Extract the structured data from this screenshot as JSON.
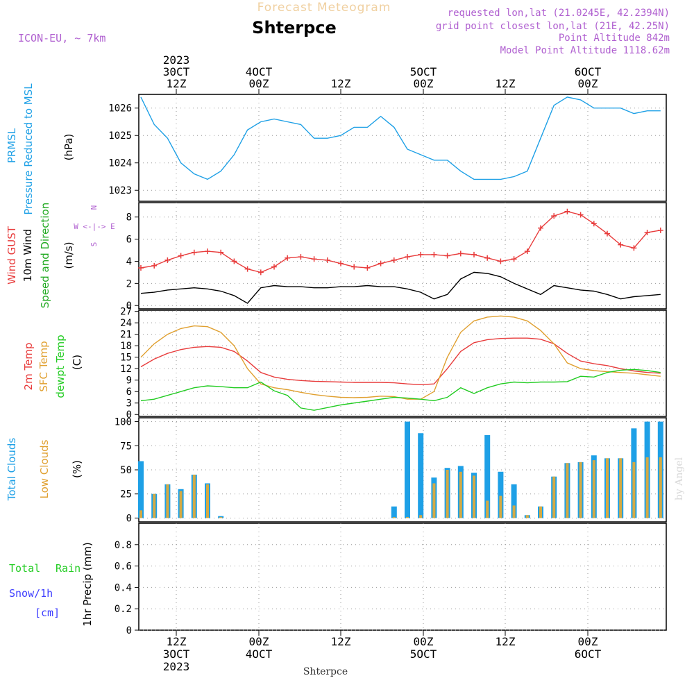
{
  "header": {
    "top_title": "Forecast Meteogram",
    "station": "Shterpce",
    "model": "ICON-EU, ~ 7km",
    "requested": "requested lon,lat (21.0245E, 42.2394N)",
    "grid": "grid point closest lon,lat (21E, 42.25N)",
    "point_alt": "Point Altitude 842m",
    "model_alt": "Model Point Altitude 1118.62m",
    "footer_station": "Shterpce",
    "watermark": "by Angel"
  },
  "time_axis": {
    "top": [
      {
        "l1": "2023",
        "l2": "30CT",
        "l3": "12Z"
      },
      {
        "l1": "",
        "l2": "4OCT",
        "l3": "00Z"
      },
      {
        "l1": "",
        "l2": "",
        "l3": "12Z"
      },
      {
        "l1": "",
        "l2": "5OCT",
        "l3": "00Z"
      },
      {
        "l1": "",
        "l2": "",
        "l3": "12Z"
      },
      {
        "l1": "",
        "l2": "6OCT",
        "l3": "00Z"
      }
    ],
    "bottom": [
      {
        "l1": "12Z",
        "l2": "3OCT",
        "l3": "2023"
      },
      {
        "l1": "00Z",
        "l2": "4OCT",
        "l3": ""
      },
      {
        "l1": "12Z",
        "l2": "",
        "l3": ""
      },
      {
        "l1": "00Z",
        "l2": "5OCT",
        "l3": ""
      },
      {
        "l1": "12Z",
        "l2": "",
        "l3": ""
      },
      {
        "l1": "00Z",
        "l2": "6OCT",
        "l3": ""
      }
    ]
  },
  "colors": {
    "pressure": "#1ea0e6",
    "gust": "#e83c3c",
    "wind": "#000000",
    "temp2m": "#e83c3c",
    "sfc": "#e0a030",
    "dewpt": "#22cc22",
    "total_clouds": "#1ea0e6",
    "low_clouds": "#d4aa44",
    "rain": "#22cc22",
    "snow": "#3c3cff",
    "violet": "#b060d0"
  },
  "panel_labels": {
    "pressure": [
      "PRMSL",
      "Pressure Reduced to MSL",
      "(hPa)"
    ],
    "wind": [
      "Wind GUST",
      "10m Wind",
      "Speed and Direction",
      "(m/s)"
    ],
    "compass": [
      "N",
      "W <-|-> E",
      "S"
    ],
    "temp": [
      "2m Temp",
      "SFC Temp",
      "dewpt Temp",
      "(C)"
    ],
    "clouds": [
      "Total Clouds",
      "Low Clouds",
      "(%)"
    ],
    "precip": [
      "Total",
      "Rain",
      "Snow/1h",
      "[cm]",
      "1hr Precip (mm)"
    ]
  },
  "chart_data": [
    {
      "type": "line",
      "title": "PRMSL",
      "ylabel": "(hPa)",
      "ylim": [
        1022.6,
        1026.5
      ],
      "yticks": [
        1023,
        1024,
        1025,
        1026
      ],
      "x_hours": [
        0,
        2,
        4,
        6,
        8,
        10,
        12,
        14,
        16,
        18,
        20,
        22,
        24,
        26,
        28,
        30,
        32,
        34,
        36,
        38,
        40,
        42,
        44,
        46,
        48,
        50,
        52,
        54,
        56,
        58,
        60,
        62,
        64,
        66,
        68,
        70,
        72,
        74,
        76,
        78
      ],
      "series": [
        {
          "name": "PRMSL",
          "values": [
            1026.4,
            1025.4,
            1024.9,
            1024.0,
            1023.6,
            1023.4,
            1023.7,
            1024.3,
            1025.2,
            1025.5,
            1025.6,
            1025.5,
            1025.4,
            1024.9,
            1024.9,
            1025.0,
            1025.3,
            1025.3,
            1025.7,
            1025.3,
            1024.5,
            1024.3,
            1024.1,
            1024.1,
            1023.7,
            1023.4,
            1023.4,
            1023.4,
            1023.5,
            1023.7,
            1024.9,
            1026.1,
            1026.4,
            1026.3,
            1026.0,
            1026.0,
            1026.0,
            1025.8,
            1025.9,
            1025.9
          ]
        }
      ]
    },
    {
      "type": "line",
      "title": "Wind",
      "ylabel": "(m/s)",
      "ylim": [
        -0.3,
        9.3
      ],
      "yticks": [
        0,
        2,
        4,
        6,
        8
      ],
      "x_hours": [
        0,
        2,
        4,
        6,
        8,
        10,
        12,
        14,
        16,
        18,
        20,
        22,
        24,
        26,
        28,
        30,
        32,
        34,
        36,
        38,
        40,
        42,
        44,
        46,
        48,
        50,
        52,
        54,
        56,
        58,
        60,
        62,
        64,
        66,
        68,
        70,
        72,
        74,
        76,
        78
      ],
      "series": [
        {
          "name": "Wind GUST",
          "values": [
            3.4,
            3.6,
            4.1,
            4.5,
            4.8,
            4.9,
            4.8,
            4.0,
            3.3,
            3.0,
            3.5,
            4.3,
            4.4,
            4.2,
            4.1,
            3.8,
            3.5,
            3.4,
            3.8,
            4.1,
            4.4,
            4.6,
            4.6,
            4.5,
            4.7,
            4.6,
            4.3,
            4.0,
            4.2,
            4.9,
            7.0,
            8.1,
            8.5,
            8.2,
            7.4,
            6.5,
            5.5,
            5.2,
            6.6,
            6.8
          ]
        },
        {
          "name": "10m Wind",
          "values": [
            1.1,
            1.2,
            1.4,
            1.5,
            1.6,
            1.5,
            1.3,
            0.9,
            0.2,
            1.6,
            1.8,
            1.7,
            1.7,
            1.6,
            1.6,
            1.7,
            1.7,
            1.8,
            1.7,
            1.7,
            1.5,
            1.2,
            0.6,
            1.0,
            2.4,
            3.0,
            2.9,
            2.6,
            2.0,
            1.5,
            1.0,
            1.8,
            1.6,
            1.4,
            1.3,
            1.0,
            0.6,
            0.8,
            0.9,
            1.0
          ]
        }
      ]
    },
    {
      "type": "line",
      "title": "Temperature",
      "ylabel": "(C)",
      "ylim": [
        -0.5,
        27.3
      ],
      "yticks": [
        0,
        3,
        6,
        9,
        12,
        15,
        18,
        21,
        24,
        27
      ],
      "x_hours": [
        0,
        2,
        4,
        6,
        8,
        10,
        12,
        14,
        16,
        18,
        20,
        22,
        24,
        26,
        28,
        30,
        32,
        34,
        36,
        38,
        40,
        42,
        44,
        46,
        48,
        50,
        52,
        54,
        56,
        58,
        60,
        62,
        64,
        66,
        68,
        70,
        72,
        74,
        76,
        78
      ],
      "series": [
        {
          "name": "2m Temp",
          "values": [
            12.5,
            14.5,
            16.0,
            17.0,
            17.6,
            17.8,
            17.6,
            16.5,
            14.0,
            11.0,
            9.8,
            9.2,
            8.9,
            8.7,
            8.6,
            8.5,
            8.4,
            8.4,
            8.4,
            8.3,
            8.0,
            7.8,
            8.0,
            12.0,
            16.5,
            18.8,
            19.6,
            19.9,
            20.0,
            20.0,
            19.7,
            18.5,
            16.0,
            14.0,
            13.3,
            12.8,
            12.0,
            11.4,
            11.0,
            10.8
          ]
        },
        {
          "name": "SFC Temp",
          "values": [
            15.0,
            18.5,
            21.0,
            22.5,
            23.2,
            23.0,
            21.5,
            18.0,
            12.0,
            8.0,
            7.0,
            6.5,
            5.8,
            5.2,
            4.8,
            4.5,
            4.4,
            4.5,
            4.8,
            4.7,
            4.0,
            4.0,
            6.0,
            15.0,
            21.5,
            24.5,
            25.5,
            25.8,
            25.5,
            24.5,
            22.0,
            18.5,
            13.5,
            12.0,
            11.5,
            11.2,
            11.0,
            10.8,
            10.4,
            10.0
          ]
        },
        {
          "name": "dewpt Temp",
          "values": [
            3.6,
            4.0,
            5.0,
            6.0,
            7.0,
            7.5,
            7.3,
            7.0,
            7.0,
            8.5,
            6.2,
            5.0,
            1.7,
            1.1,
            1.8,
            2.5,
            3.0,
            3.5,
            4.0,
            4.5,
            4.3,
            4.0,
            3.6,
            4.5,
            7.0,
            5.5,
            7.0,
            8.0,
            8.5,
            8.3,
            8.5,
            8.5,
            8.6,
            10.0,
            9.8,
            11.0,
            11.6,
            11.8,
            11.5,
            11.0
          ]
        }
      ]
    },
    {
      "type": "bar",
      "title": "Clouds",
      "ylabel": "(%)",
      "ylim": [
        -4,
        104
      ],
      "yticks": [
        0,
        25,
        50,
        75,
        100
      ],
      "x_hours": [
        0,
        2,
        4,
        6,
        8,
        10,
        12,
        14,
        16,
        18,
        20,
        22,
        24,
        26,
        28,
        30,
        32,
        34,
        36,
        38,
        40,
        42,
        44,
        46,
        48,
        50,
        52,
        54,
        56,
        58,
        60,
        62,
        64,
        66,
        68,
        70,
        72,
        74,
        76,
        78
      ],
      "series": [
        {
          "name": "Total Clouds",
          "values": [
            59,
            25,
            35,
            30,
            45,
            36,
            2,
            0,
            0,
            0,
            0,
            0,
            0,
            0,
            0,
            0,
            0,
            0,
            0,
            12,
            100,
            88,
            42,
            52,
            54,
            47,
            86,
            48,
            35,
            3,
            12,
            43,
            57,
            58,
            65,
            62,
            62,
            93,
            100,
            100
          ]
        },
        {
          "name": "Low Clouds",
          "values": [
            8,
            25,
            35,
            28,
            45,
            35,
            1,
            0,
            0,
            0,
            0,
            0,
            0,
            0,
            0,
            0,
            0,
            0,
            0,
            1,
            1,
            3,
            36,
            50,
            48,
            44,
            18,
            23,
            13,
            3,
            12,
            43,
            57,
            58,
            60,
            62,
            62,
            58,
            63,
            63
          ]
        }
      ]
    },
    {
      "type": "bar",
      "title": "1hr Precip",
      "ylabel": "1hr Precip (mm)",
      "ylim": [
        0,
        1.0
      ],
      "yticks": [
        0,
        0.2,
        0.4,
        0.6,
        0.8
      ],
      "x_hours": [
        0,
        2,
        4,
        6,
        8,
        10,
        12,
        14,
        16,
        18,
        20,
        22,
        24,
        26,
        28,
        30,
        32,
        34,
        36,
        38,
        40,
        42,
        44,
        46,
        48,
        50,
        52,
        54,
        56,
        58,
        60,
        62,
        64,
        66,
        68,
        70,
        72,
        74,
        76,
        78
      ],
      "series": [
        {
          "name": "Total Rain",
          "values": [
            0,
            0,
            0,
            0,
            0,
            0,
            0,
            0,
            0,
            0,
            0,
            0,
            0,
            0,
            0,
            0,
            0,
            0,
            0,
            0,
            0,
            0,
            0,
            0,
            0,
            0,
            0,
            0,
            0,
            0,
            0,
            0,
            0,
            0,
            0,
            0,
            0,
            0,
            0,
            0
          ]
        },
        {
          "name": "Snow/1h",
          "values": [
            0,
            0,
            0,
            0,
            0,
            0,
            0,
            0,
            0,
            0,
            0,
            0,
            0,
            0,
            0,
            0,
            0,
            0,
            0,
            0,
            0,
            0,
            0,
            0,
            0,
            0,
            0,
            0,
            0,
            0,
            0,
            0,
            0,
            0,
            0,
            0,
            0,
            0,
            0,
            0
          ]
        }
      ]
    }
  ]
}
